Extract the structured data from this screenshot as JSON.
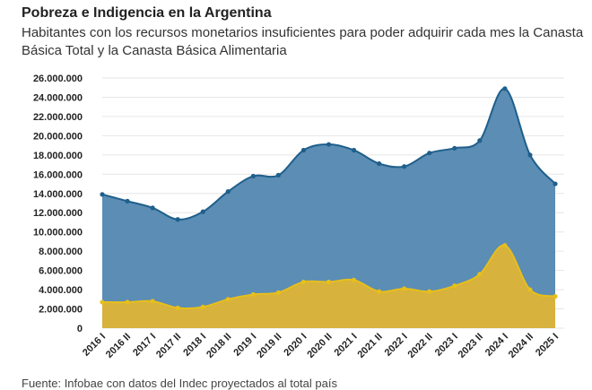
{
  "title": "Pobreza e Indigencia en la Argentina",
  "subtitle": "Habitantes con los recursos monetarios insuficientes para poder adquirir cada mes la Canasta Básica Total y la Canasta Básica Alimentaria",
  "source": "Fuente: Infobae con datos del Indec proyectados al total país",
  "colors": {
    "pobreza_fill": "#5b8db5",
    "pobreza_line": "#1f5f8b",
    "indigencia_fill": "#d7b23c",
    "indigencia_line": "#e8bf1a",
    "grid": "#e6e6e6"
  },
  "chart_data": {
    "type": "area",
    "categories": [
      "2016 I",
      "2016 II",
      "2017 I",
      "2017 II",
      "2018 I",
      "2018 II",
      "2019 I",
      "2019 II",
      "2020 I",
      "2020 II",
      "2021 I",
      "2021 II",
      "2022 I",
      "2022 II",
      "2023 I",
      "2023 II",
      "2024 I",
      "2024 II",
      "2025 I"
    ],
    "series": [
      {
        "values": [
          13900000,
          13200000,
          12500000,
          11300000,
          12100000,
          14200000,
          15800000,
          15900000,
          18500000,
          19100000,
          18500000,
          17100000,
          16800000,
          18200000,
          18700000,
          19500000,
          24900000,
          18000000,
          15000000
        ]
      },
      {
        "values": [
          2700000,
          2700000,
          2800000,
          2100000,
          2200000,
          3000000,
          3500000,
          3700000,
          4800000,
          4800000,
          5000000,
          3800000,
          4100000,
          3800000,
          4400000,
          5600000,
          8600000,
          4000000,
          3300000
        ]
      }
    ],
    "yticks": [
      "0",
      "2.000.000",
      "4.000.000",
      "6.000.000",
      "8.000.000",
      "10.000.000",
      "12.000.000",
      "14.000.000",
      "16.000.000",
      "18.000.000",
      "20.000.000",
      "22.000.000",
      "24.000.000",
      "26.000.000"
    ],
    "ylim": [
      0,
      26000000
    ],
    "grid": true
  }
}
